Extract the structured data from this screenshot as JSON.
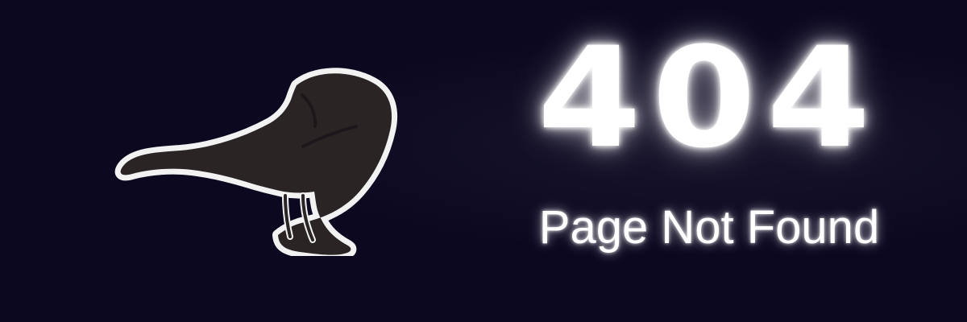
{
  "error_page": {
    "code": "404",
    "message": "Page Not Found",
    "background_color": "#0b0820",
    "text_color": "#ffffff",
    "glow_color": "#ffffff"
  },
  "illustration": {
    "icon_name": "crow-icon",
    "fill_color": "#2a2524",
    "outline_color": "#f2f2f2"
  }
}
